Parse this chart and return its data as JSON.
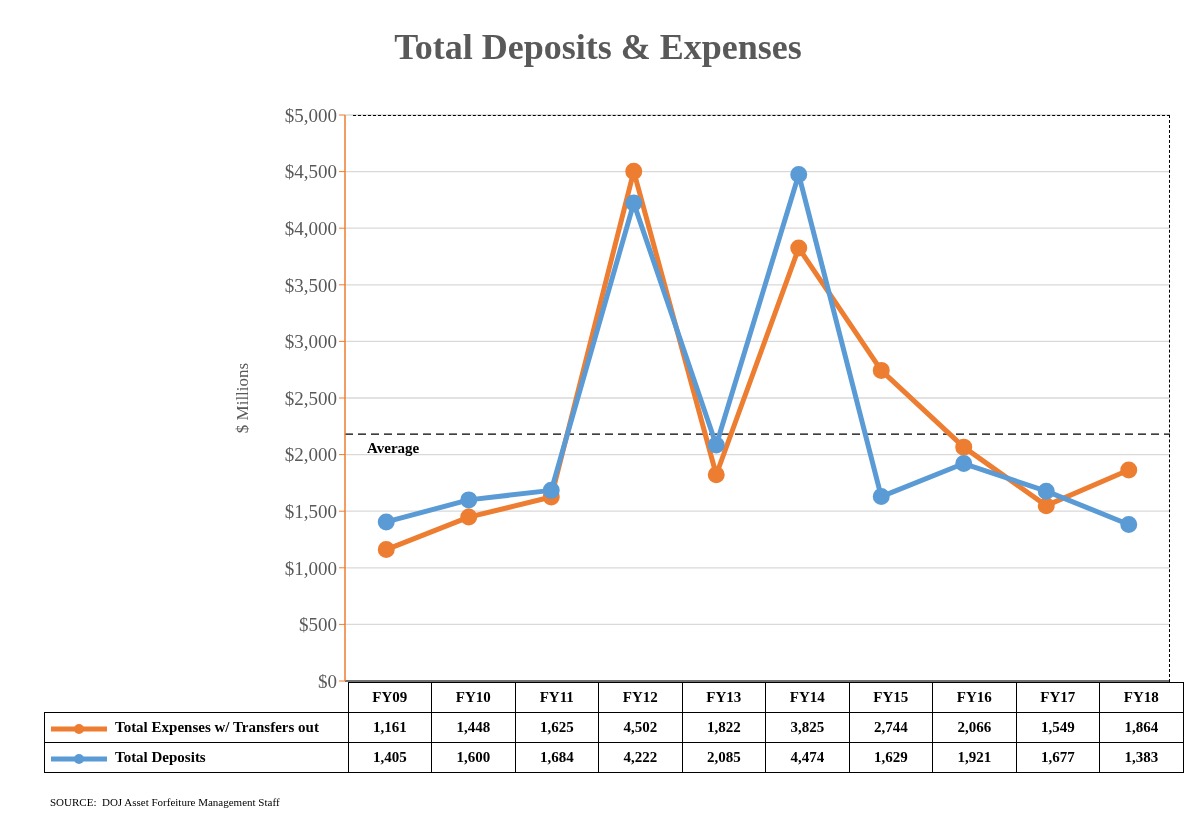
{
  "chart_data": {
    "type": "line",
    "title": "Total Deposits & Expenses",
    "ylabel": "$ Millions",
    "categories": [
      "FY09",
      "FY10",
      "FY11",
      "FY12",
      "FY13",
      "FY14",
      "FY15",
      "FY16",
      "FY17",
      "FY18"
    ],
    "series": [
      {
        "name": "Total Expenses w/ Transfers out",
        "color": "#ed7d31",
        "values": [
          1161,
          1448,
          1625,
          4502,
          1822,
          3825,
          2744,
          2066,
          1549,
          1864
        ],
        "value_labels": [
          "1,161",
          "1,448",
          "1,625",
          "4,502",
          "1,822",
          "3,825",
          "2,744",
          "2,066",
          "1,549",
          "1,864"
        ]
      },
      {
        "name": "Total Deposits",
        "color": "#5b9bd5",
        "values": [
          1405,
          1600,
          1684,
          4222,
          2085,
          4474,
          1629,
          1921,
          1677,
          1383
        ],
        "value_labels": [
          "1,405",
          "1,600",
          "1,684",
          "4,222",
          "2,085",
          "4,474",
          "1,629",
          "1,921",
          "1,677",
          "1,383"
        ]
      }
    ],
    "ylim": [
      0,
      5000
    ],
    "yticks": [
      {
        "value": 0,
        "label": "$0"
      },
      {
        "value": 500,
        "label": "$500"
      },
      {
        "value": 1000,
        "label": "$1,000"
      },
      {
        "value": 1500,
        "label": "$1,500"
      },
      {
        "value": 2000,
        "label": "$2,000"
      },
      {
        "value": 2500,
        "label": "$2,500"
      },
      {
        "value": 3000,
        "label": "$3,000"
      },
      {
        "value": 3500,
        "label": "$3,500"
      },
      {
        "value": 4000,
        "label": "$4,000"
      },
      {
        "value": 4500,
        "label": "$4,500"
      },
      {
        "value": 5000,
        "label": "$5,000"
      }
    ],
    "ref_lines": [
      {
        "axis": "y",
        "value": 2180,
        "label": "Average",
        "color": "#000000",
        "line_style": "dashed"
      }
    ],
    "grid": "y",
    "legend": "bottom",
    "marker": "circle",
    "line_style": "solid",
    "annotations": [
      "SOURCE:  DOJ Asset Forfeiture Management Staff"
    ]
  }
}
